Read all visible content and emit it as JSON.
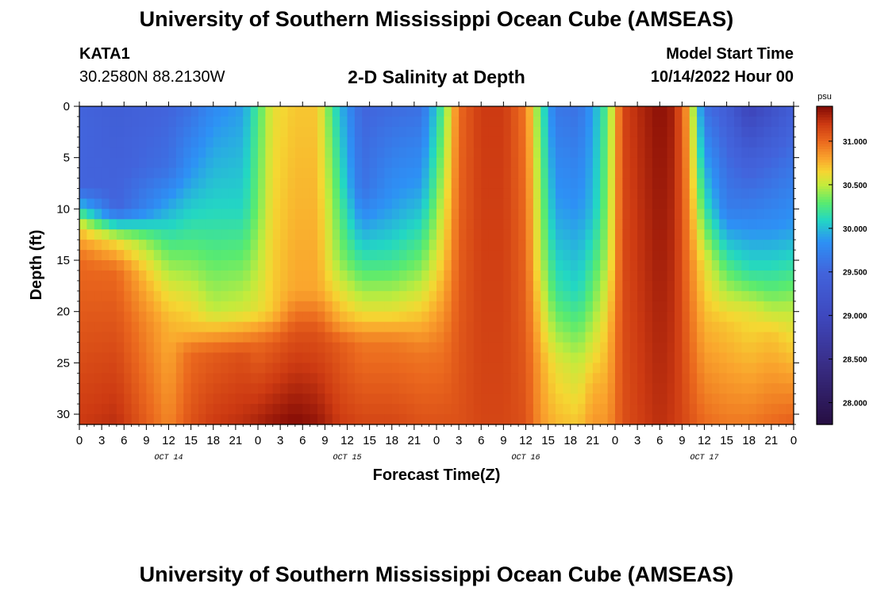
{
  "header": {
    "title": "University of Southern Mississippi Ocean Cube (AMSEAS)",
    "station_id": "KATA1",
    "station_coords": "30.2580N  88.2130W",
    "subtitle": "2-D Salinity at Depth",
    "model_start_label": "Model Start Time",
    "model_start_value": "10/14/2022 Hour 00"
  },
  "footer": {
    "title": "University of Southern Mississippi Ocean Cube (AMSEAS)"
  },
  "chart_data": {
    "type": "heatmap",
    "title": "2-D Salinity at Depth",
    "xlabel": "Forecast Time(Z)",
    "ylabel": "Depth (ft)",
    "x_range_hours": [
      0,
      96
    ],
    "y_range_ft": [
      0,
      31
    ],
    "x_tick_labels": [
      "0",
      "3",
      "6",
      "9",
      "12",
      "15",
      "18",
      "21",
      "0",
      "3",
      "6",
      "9",
      "12",
      "15",
      "18",
      "21",
      "0",
      "3",
      "6",
      "9",
      "12",
      "15",
      "18",
      "21",
      "0",
      "3",
      "6",
      "9",
      "12",
      "15",
      "18",
      "21",
      "0"
    ],
    "x_tick_hours": [
      0,
      3,
      6,
      9,
      12,
      15,
      18,
      21,
      24,
      27,
      30,
      33,
      36,
      39,
      42,
      45,
      48,
      51,
      54,
      57,
      60,
      63,
      66,
      69,
      72,
      75,
      78,
      81,
      84,
      87,
      90,
      93,
      96
    ],
    "y_ticks": [
      0,
      5,
      10,
      15,
      20,
      25,
      30
    ],
    "y_tick_labels": [
      "0",
      "5",
      "10",
      "15",
      "20",
      "25",
      "30"
    ],
    "date_labels": [
      {
        "text": "OCT 14",
        "hour": 12
      },
      {
        "text": "OCT 15",
        "hour": 36
      },
      {
        "text": "OCT 16",
        "hour": 60
      },
      {
        "text": "OCT 17",
        "hour": 84
      }
    ],
    "colorbar": {
      "unit": "psu",
      "range": [
        27.75,
        31.4
      ],
      "ticks": [
        31.0,
        30.5,
        30.0,
        29.5,
        29.0,
        28.5,
        28.0
      ],
      "tick_labels": [
        "31.000",
        "30.500",
        "30.000",
        "29.500",
        "29.000",
        "28.500",
        "28.000"
      ]
    },
    "salinity_psu": {
      "description": "approximate salinity keyframes per forecast hour, each profile is [depth_ft, psu] pairs",
      "columns": [
        {
          "hour": 0,
          "profile": [
            [
              0,
              29.5
            ],
            [
              8,
              29.5
            ],
            [
              10,
              30.1
            ],
            [
              12,
              30.7
            ],
            [
              15,
              31.0
            ],
            [
              31,
              31.2
            ]
          ]
        },
        {
          "hour": 5,
          "profile": [
            [
              0,
              29.4
            ],
            [
              10,
              29.5
            ],
            [
              13,
              30.6
            ],
            [
              16,
              31.0
            ],
            [
              31,
              31.25
            ]
          ]
        },
        {
          "hour": 12,
          "profile": [
            [
              0,
              29.5
            ],
            [
              6,
              29.6
            ],
            [
              14,
              30.3
            ],
            [
              18,
              30.6
            ],
            [
              21,
              30.75
            ],
            [
              31,
              30.9
            ]
          ]
        },
        {
          "hour": 15,
          "profile": [
            [
              0,
              29.6
            ],
            [
              7,
              29.9
            ],
            [
              14,
              30.3
            ],
            [
              19,
              30.6
            ],
            [
              22,
              30.75
            ],
            [
              24,
              31.0
            ],
            [
              31,
              31.1
            ]
          ]
        },
        {
          "hour": 18,
          "profile": [
            [
              0,
              29.8
            ],
            [
              10,
              30.1
            ],
            [
              20,
              30.5
            ],
            [
              24,
              31.05
            ],
            [
              31,
              31.2
            ]
          ]
        },
        {
          "hour": 22,
          "profile": [
            [
              0,
              29.9
            ],
            [
              10,
              30.1
            ],
            [
              20,
              30.55
            ],
            [
              24,
              31.1
            ],
            [
              31,
              31.25
            ]
          ]
        },
        {
          "hour": 24,
          "profile": [
            [
              0,
              30.25
            ],
            [
              10,
              30.35
            ],
            [
              20,
              30.6
            ],
            [
              23,
              31.0
            ],
            [
              31,
              31.3
            ]
          ]
        },
        {
          "hour": 26,
          "profile": [
            [
              0,
              30.6
            ],
            [
              20,
              30.7
            ],
            [
              23,
              31.05
            ],
            [
              31,
              31.35
            ]
          ]
        },
        {
          "hour": 29,
          "profile": [
            [
              0,
              30.7
            ],
            [
              18,
              30.8
            ],
            [
              22,
              31.1
            ],
            [
              31,
              31.4
            ]
          ]
        },
        {
          "hour": 32,
          "profile": [
            [
              0,
              30.7
            ],
            [
              18,
              30.8
            ],
            [
              22,
              31.1
            ],
            [
              31,
              31.35
            ]
          ]
        },
        {
          "hour": 35,
          "profile": [
            [
              0,
              30.0
            ],
            [
              15,
              30.4
            ],
            [
              21,
              30.8
            ],
            [
              23,
              31.05
            ],
            [
              31,
              31.2
            ]
          ]
        },
        {
          "hour": 38,
          "profile": [
            [
              0,
              29.5
            ],
            [
              8,
              29.6
            ],
            [
              14,
              30.1
            ],
            [
              20,
              30.6
            ],
            [
              23,
              30.95
            ],
            [
              31,
              31.15
            ]
          ]
        },
        {
          "hour": 42,
          "profile": [
            [
              0,
              29.55
            ],
            [
              10,
              29.9
            ],
            [
              15,
              30.2
            ],
            [
              20,
              30.6
            ],
            [
              23,
              30.95
            ],
            [
              31,
              31.15
            ]
          ]
        },
        {
          "hour": 46,
          "profile": [
            [
              0,
              29.6
            ],
            [
              8,
              29.9
            ],
            [
              16,
              30.4
            ],
            [
              21,
              30.75
            ],
            [
              24,
              30.95
            ],
            [
              31,
              31.1
            ]
          ]
        },
        {
          "hour": 49,
          "profile": [
            [
              0,
              30.3
            ],
            [
              15,
              30.7
            ],
            [
              23,
              30.95
            ],
            [
              31,
              31.1
            ]
          ]
        },
        {
          "hour": 51,
          "profile": [
            [
              0,
              31.0
            ],
            [
              31,
              31.1
            ]
          ]
        },
        {
          "hour": 54,
          "profile": [
            [
              0,
              31.2
            ],
            [
              31,
              31.15
            ]
          ]
        },
        {
          "hour": 57,
          "profile": [
            [
              0,
              31.2
            ],
            [
              31,
              31.15
            ]
          ]
        },
        {
          "hour": 60,
          "profile": [
            [
              0,
              30.95
            ],
            [
              31,
              31.1
            ]
          ]
        },
        {
          "hour": 62,
          "profile": [
            [
              0,
              30.25
            ],
            [
              15,
              30.5
            ],
            [
              25,
              30.8
            ],
            [
              31,
              30.85
            ]
          ]
        },
        {
          "hour": 64,
          "profile": [
            [
              0,
              29.65
            ],
            [
              10,
              29.9
            ],
            [
              18,
              30.2
            ],
            [
              25,
              30.6
            ],
            [
              31,
              30.75
            ]
          ]
        },
        {
          "hour": 67,
          "profile": [
            [
              0,
              29.6
            ],
            [
              10,
              29.85
            ],
            [
              18,
              30.1
            ],
            [
              25,
              30.5
            ],
            [
              31,
              30.7
            ]
          ]
        },
        {
          "hour": 69,
          "profile": [
            [
              0,
              29.9
            ],
            [
              10,
              30.0
            ],
            [
              20,
              30.4
            ],
            [
              27,
              30.75
            ],
            [
              31,
              30.85
            ]
          ]
        },
        {
          "hour": 71,
          "profile": [
            [
              0,
              30.3
            ],
            [
              14,
              30.45
            ],
            [
              22,
              30.7
            ],
            [
              31,
              30.85
            ]
          ]
        },
        {
          "hour": 73,
          "profile": [
            [
              0,
              31.15
            ],
            [
              31,
              31.1
            ]
          ]
        },
        {
          "hour": 76,
          "profile": [
            [
              0,
              31.3
            ],
            [
              31,
              31.2
            ]
          ]
        },
        {
          "hour": 78,
          "profile": [
            [
              0,
              31.38
            ],
            [
              31,
              31.25
            ]
          ]
        },
        {
          "hour": 80,
          "profile": [
            [
              0,
              31.3
            ],
            [
              31,
              31.2
            ]
          ]
        },
        {
          "hour": 82,
          "profile": [
            [
              0,
              30.75
            ],
            [
              12,
              30.9
            ],
            [
              31,
              31.1
            ]
          ]
        },
        {
          "hour": 84,
          "profile": [
            [
              0,
              29.6
            ],
            [
              10,
              30.2
            ],
            [
              15,
              30.6
            ],
            [
              31,
              31.0
            ]
          ]
        },
        {
          "hour": 87,
          "profile": [
            [
              0,
              29.4
            ],
            [
              10,
              29.7
            ],
            [
              16,
              30.3
            ],
            [
              21,
              30.7
            ],
            [
              31,
              30.95
            ]
          ]
        },
        {
          "hour": 90,
          "profile": [
            [
              0,
              28.9
            ],
            [
              5,
              29.4
            ],
            [
              10,
              29.7
            ],
            [
              16,
              30.15
            ],
            [
              20,
              30.6
            ],
            [
              31,
              30.95
            ]
          ]
        },
        {
          "hour": 93,
          "profile": [
            [
              0,
              29.15
            ],
            [
              5,
              29.5
            ],
            [
              12,
              29.85
            ],
            [
              18,
              30.3
            ],
            [
              22,
              30.7
            ],
            [
              31,
              31.0
            ]
          ]
        },
        {
          "hour": 96,
          "profile": [
            [
              0,
              29.4
            ],
            [
              12,
              29.9
            ],
            [
              20,
              30.5
            ],
            [
              31,
              31.05
            ]
          ]
        }
      ]
    }
  }
}
